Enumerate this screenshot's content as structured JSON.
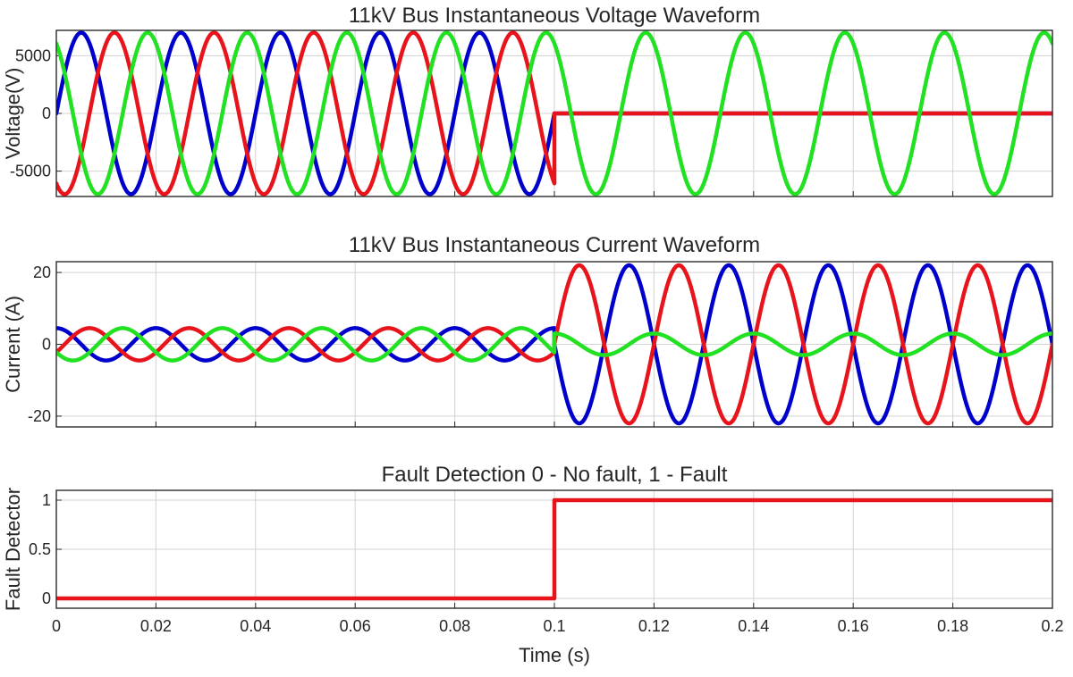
{
  "chart_data": [
    {
      "type": "line",
      "title": "11kV Bus Instantaneous Voltage Waveform",
      "xlabel": "",
      "ylabel": "Voltage(V)",
      "xlim": [
        0,
        0.2
      ],
      "ylim": [
        -7200,
        7200
      ],
      "xticks": [
        0,
        0.02,
        0.04,
        0.06,
        0.08,
        0.1,
        0.12,
        0.14,
        0.16,
        0.18,
        0.2
      ],
      "yticks": [
        {
          "value": -5000,
          "label": "-5000"
        },
        {
          "value": 0,
          "label": "0"
        },
        {
          "value": 5000,
          "label": "5000"
        }
      ],
      "grid": true,
      "frequency_hz": 50,
      "fault_time_s": 0.1,
      "series": [
        {
          "color": "#0000cc",
          "pre_fault_amplitude": 7000,
          "phase_deg": 0,
          "post_fault_amplitude": 0
        },
        {
          "color": "#e8141c",
          "pre_fault_amplitude": 7000,
          "phase_deg": -120,
          "post_fault_amplitude": 0
        },
        {
          "color": "#22e022",
          "pre_fault_amplitude": 7000,
          "phase_deg": 120,
          "post_fault_amplitude": 7000
        }
      ]
    },
    {
      "type": "line",
      "title": "11kV Bus Instantaneous Current Waveform",
      "xlabel": "",
      "ylabel": "Current (A)",
      "xlim": [
        0,
        0.2
      ],
      "ylim": [
        -23,
        23
      ],
      "xticks": [
        0,
        0.02,
        0.04,
        0.06,
        0.08,
        0.1,
        0.12,
        0.14,
        0.16,
        0.18,
        0.2
      ],
      "yticks": [
        {
          "value": -20,
          "label": "-20"
        },
        {
          "value": 0,
          "label": "0"
        },
        {
          "value": 20,
          "label": "20"
        }
      ],
      "grid": true,
      "frequency_hz": 50,
      "fault_time_s": 0.1,
      "series": [
        {
          "color": "#0000cc",
          "pre_fault_amplitude": 4.5,
          "pre_fault_phase_deg": 90,
          "post_fault_amplitude": 22,
          "post_fault_phase_deg": 180
        },
        {
          "color": "#e8141c",
          "pre_fault_amplitude": 4.5,
          "pre_fault_phase_deg": -30,
          "post_fault_amplitude": 22,
          "post_fault_phase_deg": 0
        },
        {
          "color": "#22e022",
          "pre_fault_amplitude": 4.5,
          "pre_fault_phase_deg": 210,
          "post_fault_amplitude": 3,
          "post_fault_phase_deg": 90
        }
      ]
    },
    {
      "type": "line",
      "title": "Fault Detection 0 - No fault, 1 - Fault",
      "xlabel": "Time (s)",
      "ylabel": "Fault Detector",
      "xlim": [
        0,
        0.2
      ],
      "ylim": [
        -0.1,
        1.1
      ],
      "xticks": [
        0,
        0.02,
        0.04,
        0.06,
        0.08,
        0.1,
        0.12,
        0.14,
        0.16,
        0.18,
        0.2
      ],
      "yticks": [
        {
          "value": 0,
          "label": "0"
        },
        {
          "value": 0.5,
          "label": "0.5"
        },
        {
          "value": 1,
          "label": "1"
        }
      ],
      "grid": true,
      "series": [
        {
          "color": "#e8141c",
          "x": [
            0,
            0.1,
            0.1,
            0.2
          ],
          "y": [
            0,
            0,
            1,
            1
          ]
        }
      ]
    }
  ],
  "x_tick_labels": [
    "0",
    "0.02",
    "0.04",
    "0.06",
    "0.08",
    "0.1",
    "0.12",
    "0.14",
    "0.16",
    "0.18",
    "0.2"
  ]
}
